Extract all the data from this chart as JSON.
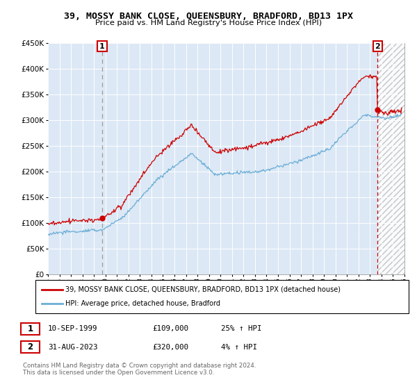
{
  "title": "39, MOSSY BANK CLOSE, QUEENSBURY, BRADFORD, BD13 1PX",
  "subtitle": "Price paid vs. HM Land Registry's House Price Index (HPI)",
  "legend_line1": "39, MOSSY BANK CLOSE, QUEENSBURY, BRADFORD, BD13 1PX (detached house)",
  "legend_line2": "HPI: Average price, detached house, Bradford",
  "annotation1_label": "1",
  "annotation1_date": "10-SEP-1999",
  "annotation1_price": "£109,000",
  "annotation1_hpi": "25% ↑ HPI",
  "annotation2_label": "2",
  "annotation2_date": "31-AUG-2023",
  "annotation2_price": "£320,000",
  "annotation2_hpi": "4% ↑ HPI",
  "footer": "Contains HM Land Registry data © Crown copyright and database right 2024.\nThis data is licensed under the Open Government Licence v3.0.",
  "hpi_color": "#6baed6",
  "price_color": "#cc0000",
  "vline1_color": "#999999",
  "vline2_color": "#cc0000",
  "sale1_x": 1999.71,
  "sale1_y": 109000,
  "sale2_x": 2023.66,
  "sale2_y": 320000,
  "ylim": [
    0,
    450000
  ],
  "xlim": [
    1995,
    2026
  ],
  "yticks": [
    0,
    50000,
    100000,
    150000,
    200000,
    250000,
    300000,
    350000,
    400000,
    450000
  ],
  "xticks": [
    1995,
    1996,
    1997,
    1998,
    1999,
    2000,
    2001,
    2002,
    2003,
    2004,
    2005,
    2006,
    2007,
    2008,
    2009,
    2010,
    2011,
    2012,
    2013,
    2014,
    2015,
    2016,
    2017,
    2018,
    2019,
    2020,
    2021,
    2022,
    2023,
    2024,
    2025,
    2026
  ],
  "background_color": "#dce8f5",
  "hatch_region_start": 2023.66
}
